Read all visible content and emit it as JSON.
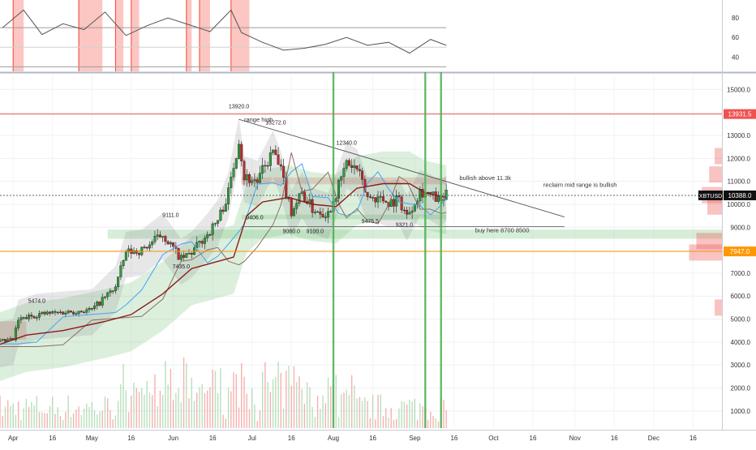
{
  "chart_data": [
    {
      "type": "line",
      "panel": "oscillator",
      "y_ticks": [
        80,
        60,
        40
      ],
      "ylim": [
        27,
        95
      ],
      "reference_lines": [
        70,
        50,
        30
      ],
      "x": [
        "2019-03-28",
        "2019-04-05",
        "2019-04-12",
        "2019-04-20",
        "2019-04-28",
        "2019-05-06",
        "2019-05-14",
        "2019-05-22",
        "2019-05-30",
        "2019-06-07",
        "2019-06-15",
        "2019-06-23",
        "2019-06-27",
        "2019-07-05",
        "2019-07-13",
        "2019-07-21",
        "2019-07-29",
        "2019-08-06",
        "2019-08-14",
        "2019-08-22",
        "2019-08-30",
        "2019-09-07",
        "2019-09-13"
      ],
      "values": [
        70,
        88,
        63,
        74,
        68,
        86,
        62,
        72,
        80,
        73,
        66,
        88,
        65,
        55,
        47,
        49,
        53,
        60,
        52,
        55,
        44,
        58,
        52
      ],
      "overbought_zones": [
        [
          "2019-04-01",
          "2019-04-05"
        ],
        [
          "2019-04-26",
          "2019-05-05"
        ],
        [
          "2019-05-10",
          "2019-05-13"
        ],
        [
          "2019-05-16",
          "2019-05-19"
        ],
        [
          "2019-06-06",
          "2019-06-08"
        ],
        [
          "2019-06-11",
          "2019-06-15"
        ],
        [
          "2019-06-23",
          "2019-06-30"
        ]
      ]
    },
    {
      "type": "candlestick",
      "panel": "price",
      "symbol": "XBTUSD",
      "x_tick_labels": [
        {
          "label": "Apr",
          "date": "2019-04-01"
        },
        {
          "label": "16",
          "date": "2019-04-16"
        },
        {
          "label": "May",
          "date": "2019-05-01"
        },
        {
          "label": "16",
          "date": "2019-05-16"
        },
        {
          "label": "Jun",
          "date": "2019-06-01"
        },
        {
          "label": "16",
          "date": "2019-06-16"
        },
        {
          "label": "Jul",
          "date": "2019-07-01"
        },
        {
          "label": "16",
          "date": "2019-07-16"
        },
        {
          "label": "Aug",
          "date": "2019-08-01"
        },
        {
          "label": "16",
          "date": "2019-08-16"
        },
        {
          "label": "Sep",
          "date": "2019-09-01"
        },
        {
          "label": "16",
          "date": "2019-09-16"
        },
        {
          "label": "Oct",
          "date": "2019-10-01"
        },
        {
          "label": "16",
          "date": "2019-10-16"
        },
        {
          "label": "Nov",
          "date": "2019-11-01"
        },
        {
          "label": "16",
          "date": "2019-11-16"
        },
        {
          "label": "Dec",
          "date": "2019-12-01"
        },
        {
          "label": "16",
          "date": "2019-12-16"
        }
      ],
      "y_ticks": [
        15000.0,
        14000.0,
        13000.0,
        12000.0,
        11000.0,
        10000.0,
        9000.0,
        8000.0,
        7000.0,
        6000.0,
        5000.0,
        4000.0,
        3000.0,
        2000.0,
        1000.0
      ],
      "y_tick_labels": [
        "15000.0",
        "14000.0",
        "13000.0",
        "12000.0",
        "11000.0",
        "10000.0",
        "9000.0",
        "8000.0",
        "7000.0",
        "6000.0",
        "5000.0",
        "4000.0",
        "3000.0",
        "2000.0",
        "1000.0"
      ],
      "ylim": [
        250,
        15650
      ],
      "x_range": [
        "2019-03-27",
        "2019-12-27"
      ],
      "close_series": {
        "x": [
          "2019-03-27",
          "2019-04-01",
          "2019-04-03",
          "2019-04-10",
          "2019-04-20",
          "2019-05-01",
          "2019-05-10",
          "2019-05-14",
          "2019-05-20",
          "2019-05-28",
          "2019-06-04",
          "2019-06-08",
          "2019-06-14",
          "2019-06-18",
          "2019-06-22",
          "2019-06-26",
          "2019-06-28",
          "2019-07-03",
          "2019-07-09",
          "2019-07-12",
          "2019-07-16",
          "2019-07-20",
          "2019-07-24",
          "2019-07-30",
          "2019-08-03",
          "2019-08-06",
          "2019-08-10",
          "2019-08-14",
          "2019-08-18",
          "2019-08-22",
          "2019-08-26",
          "2019-08-29",
          "2019-09-03",
          "2019-09-07",
          "2019-09-11",
          "2019-09-13"
        ],
        "values": [
          4000,
          4100,
          4950,
          5200,
          5300,
          5400,
          6400,
          7900,
          8000,
          8700,
          7600,
          7900,
          8700,
          9300,
          10500,
          12900,
          11200,
          11000,
          12300,
          11400,
          9700,
          10500,
          9800,
          9600,
          10800,
          11800,
          11500,
          10300,
          10300,
          10100,
          10200,
          9500,
          10600,
          10400,
          10100,
          10388
        ]
      },
      "baseline_series": {
        "x": [
          "2019-03-27",
          "2019-04-06",
          "2019-04-20",
          "2019-05-06",
          "2019-05-16",
          "2019-05-28",
          "2019-06-08",
          "2019-06-24",
          "2019-06-29",
          "2019-07-05",
          "2019-07-15",
          "2019-07-24",
          "2019-08-02",
          "2019-08-10",
          "2019-08-20",
          "2019-08-30",
          "2019-09-05",
          "2019-09-13"
        ],
        "values": [
          3900,
          4300,
          4500,
          4900,
          5200,
          6100,
          7200,
          7700,
          9500,
          10100,
          10300,
          10000,
          9900,
          10700,
          10900,
          10900,
          10500,
          10300
        ]
      },
      "price_labels": [
        {
          "text": "5474.0",
          "date": "2019-04-10",
          "price": 5700
        },
        {
          "text": "9111.0",
          "date": "2019-05-31",
          "price": 9450
        },
        {
          "text": "7435.0",
          "date": "2019-06-04",
          "price": 7200
        },
        {
          "text": "13920.0",
          "date": "2019-06-26",
          "price": 14180
        },
        {
          "text": "13272.0",
          "date": "2019-07-10",
          "price": 13470
        },
        {
          "text": "9406.0",
          "date": "2019-07-02",
          "price": 9350
        },
        {
          "text": "9080.0",
          "date": "2019-07-16",
          "price": 8750
        },
        {
          "text": "9100.0",
          "date": "2019-07-25",
          "price": 8750
        },
        {
          "text": "12340.0",
          "date": "2019-08-06",
          "price": 12600
        },
        {
          "text": "9475.5",
          "date": "2019-08-15",
          "price": 9180
        },
        {
          "text": "9321.0",
          "date": "2019-08-28",
          "price": 9030
        }
      ],
      "annotations": [
        {
          "text": "range high",
          "date": "2019-06-28",
          "price": 13600
        },
        {
          "text": "bullish above 11.3k",
          "date": "2019-09-18",
          "price": 11050
        },
        {
          "text": "reclaim mid range is bullish",
          "date": "2019-10-20",
          "price": 10750
        },
        {
          "text": "buy here 8700 8500",
          "date": "2019-09-24",
          "price": 8780
        }
      ],
      "horizontal_levels": [
        {
          "price": 13931.5,
          "label": "13931.5",
          "color": "#ef5350"
        },
        {
          "price": 7947.0,
          "label": "7947.0",
          "color": "#ff9800"
        }
      ],
      "last_price": {
        "price": 10388.0,
        "label": "10388.0",
        "symbol": "XBTUSD"
      },
      "event_lines": [
        "2019-08-01",
        "2019-09-05",
        "2019-09-11"
      ],
      "zones": [
        {
          "from_date": "2019-06-27",
          "to_date": "2019-09-13",
          "low": 10870,
          "high": 11170,
          "color": "#ef9a9a"
        },
        {
          "from_date": "2019-05-07",
          "to_date": "2019-12-27",
          "low": 8500,
          "high": 8900,
          "color": "#a5d6a7"
        },
        {
          "from_date": "2019-06-27",
          "to_date": "2019-09-13",
          "low": 9350,
          "high": 9550,
          "color": "#a5d6a7"
        },
        {
          "from_date": "2019-03-27",
          "to_date": "2019-04-06",
          "low": 4100,
          "high": 4900,
          "color": "#ef9a9a"
        }
      ],
      "trendline": {
        "from": {
          "date": "2019-06-26",
          "price": 13700
        },
        "to": {
          "date": "2019-10-28",
          "price": 9450
        }
      },
      "volume_profile_peaks": [
        {
          "price": 12100,
          "size": 0.2
        },
        {
          "price": 11300,
          "size": 0.35
        },
        {
          "price": 10400,
          "size": 0.55
        },
        {
          "price": 9900,
          "size": 0.4
        },
        {
          "price": 8400,
          "size": 0.7
        },
        {
          "price": 7900,
          "size": 0.9
        },
        {
          "price": 5500,
          "size": 0.2
        }
      ],
      "grid": true
    }
  ]
}
